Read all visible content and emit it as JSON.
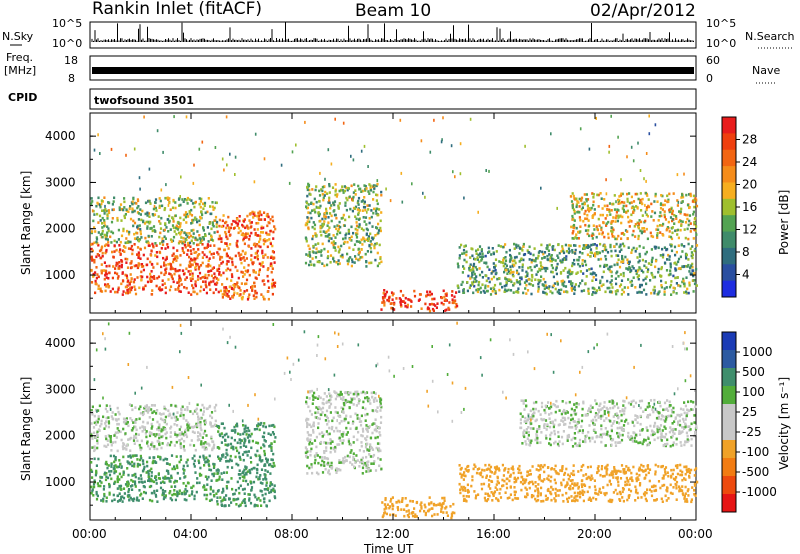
{
  "header": {
    "station": "Rankin Inlet (fitACF)",
    "beam": "Beam 10",
    "date": "02/Apr/2012"
  },
  "strips": {
    "nsky_label": "N.Sky",
    "nsky_ticks": [
      "10^5",
      "10^0"
    ],
    "nsearch_label": "N.Search",
    "nsearch_ticks": [
      "10^5",
      "10^0"
    ],
    "freq_label_1": "Freq.",
    "freq_label_2": "[MHz]",
    "freq_ticks": [
      "18",
      "8"
    ],
    "nave_label": "Nave",
    "nave_ticks": [
      "60",
      "0"
    ],
    "cpid_label": "CPID",
    "cpid_value": "twofsound 3501"
  },
  "axes": {
    "ylabel": "Slant Range [km]",
    "yticks": [
      "4000",
      "3000",
      "2000",
      "1000"
    ],
    "xticks": [
      "00:00",
      "04:00",
      "08:00",
      "12:00",
      "16:00",
      "20:00",
      "00:00"
    ],
    "xlabel": "Time UT"
  },
  "colorbars": {
    "power": {
      "label": "Power [dB]",
      "ticks": [
        "28",
        "24",
        "20",
        "16",
        "12",
        "8",
        "4"
      ],
      "colors": [
        "#e81c1c",
        "#ef3f0e",
        "#f26512",
        "#f58c1a",
        "#f6ae1f",
        "#9fbf2e",
        "#53a352",
        "#3f8b6a",
        "#2f6d7e",
        "#2a4fa0",
        "#1e2de0"
      ]
    },
    "velocity": {
      "label": "Velocity [m s⁻¹]",
      "ticks": [
        "1000",
        "500",
        "100",
        "25",
        "-25",
        "-100",
        "-500",
        "-1000"
      ],
      "colors": [
        "#1b3bb5",
        "#2c5aa1",
        "#3f8e6c",
        "#52ad3a",
        "#c8c8c8",
        "#c8c8c8",
        "#f0a228",
        "#f27c12",
        "#ee4a0e",
        "#e61515"
      ]
    }
  },
  "chart_data": [
    {
      "type": "heatmap",
      "title": "Power",
      "xlabel": "Time UT",
      "ylabel": "Slant Range [km]",
      "x_range_hours": [
        0,
        24
      ],
      "y_range_km": [
        180,
        4500
      ],
      "colorbar_label": "Power [dB]",
      "value_range": [
        0,
        30
      ],
      "echo_regions": [
        {
          "t_start": 0.0,
          "t_end": 5.0,
          "range_km": [
            600,
            1700
          ],
          "power_db": 26
        },
        {
          "t_start": 0.0,
          "t_end": 5.0,
          "range_km": [
            1700,
            2700
          ],
          "power_db": 14
        },
        {
          "t_start": 5.0,
          "t_end": 7.3,
          "range_km": [
            500,
            2400
          ],
          "power_db": 24
        },
        {
          "t_start": 8.5,
          "t_end": 11.5,
          "range_km": [
            1200,
            3000
          ],
          "power_db": 13
        },
        {
          "t_start": 11.5,
          "t_end": 14.5,
          "range_km": [
            250,
            700
          ],
          "power_db": 28
        },
        {
          "t_start": 14.5,
          "t_end": 24.0,
          "range_km": [
            600,
            1700
          ],
          "power_db": 11
        },
        {
          "t_start": 19.0,
          "t_end": 24.0,
          "range_km": [
            1800,
            2800
          ],
          "power_db": 17
        }
      ]
    },
    {
      "type": "heatmap",
      "title": "Velocity",
      "xlabel": "Time UT",
      "ylabel": "Slant Range [km]",
      "x_range_hours": [
        0,
        24
      ],
      "y_range_km": [
        180,
        4500
      ],
      "colorbar_label": "Velocity [m s⁻¹]",
      "value_range": [
        -1000,
        1000
      ],
      "echo_regions": [
        {
          "t_start": 0.0,
          "t_end": 5.0,
          "range_km": [
            600,
            1600
          ],
          "velocity": 120
        },
        {
          "t_start": 0.0,
          "t_end": 5.0,
          "range_km": [
            1700,
            2700
          ],
          "velocity": 0
        },
        {
          "t_start": 5.0,
          "t_end": 7.3,
          "range_km": [
            500,
            2300
          ],
          "velocity": 150
        },
        {
          "t_start": 8.5,
          "t_end": 11.5,
          "range_km": [
            1200,
            3000
          ],
          "velocity": 0
        },
        {
          "t_start": 11.5,
          "t_end": 14.5,
          "range_km": [
            250,
            700
          ],
          "velocity": -250
        },
        {
          "t_start": 14.5,
          "t_end": 24.0,
          "range_km": [
            600,
            1400
          ],
          "velocity": -300
        },
        {
          "t_start": 17.0,
          "t_end": 24.0,
          "range_km": [
            1800,
            2800
          ],
          "velocity": 0
        }
      ]
    }
  ]
}
